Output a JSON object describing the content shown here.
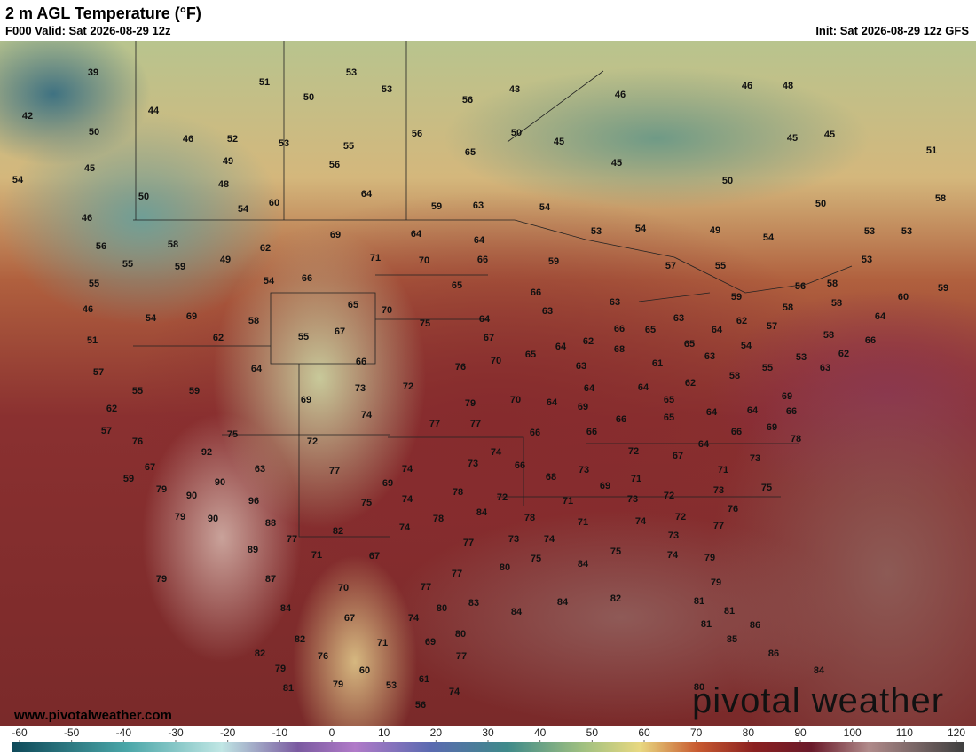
{
  "header": {
    "title": "2 m AGL Temperature (°F)",
    "valid": "F000 Valid: Sat 2026-08-29 12z",
    "init": "Init: Sat 2026-08-29 12z GFS"
  },
  "map": {
    "station_values": [
      39,
      51,
      53,
      53,
      50,
      43,
      46,
      46,
      48,
      42,
      44,
      50,
      46,
      52,
      53,
      55,
      56,
      56,
      50,
      45,
      65,
      45,
      49,
      56,
      45,
      45,
      45,
      51,
      50,
      54,
      50,
      48,
      64,
      60,
      59,
      63,
      54,
      50,
      58,
      54,
      46,
      69,
      64,
      64,
      53,
      54,
      49,
      54,
      53,
      53,
      56,
      58,
      62,
      71,
      70,
      66,
      59,
      57,
      55,
      53,
      55,
      49,
      59,
      54,
      66,
      65,
      66,
      56,
      58,
      60,
      59,
      55,
      65,
      70,
      63,
      63,
      59,
      46,
      54,
      69,
      58,
      75,
      64,
      63,
      58,
      58,
      64,
      51,
      62,
      55,
      67,
      67,
      62,
      66,
      65,
      64,
      62,
      57,
      58,
      66,
      57,
      64,
      66,
      76,
      70,
      65,
      64,
      63,
      68,
      61,
      65,
      63,
      54,
      55,
      53,
      63,
      62,
      55,
      59,
      73,
      72,
      70,
      64,
      64,
      64,
      62,
      58,
      69,
      62,
      69,
      79,
      74,
      69,
      65,
      65,
      64,
      64,
      66,
      57,
      77,
      77,
      66,
      66,
      66,
      66,
      69,
      78,
      76,
      75,
      72,
      92,
      74,
      72,
      67,
      64,
      67,
      63,
      77,
      74,
      73,
      66,
      73,
      71,
      73,
      59,
      90,
      69,
      68,
      69,
      71,
      72,
      73,
      75,
      79,
      90,
      96,
      78,
      72,
      71,
      73,
      76,
      79,
      90,
      75,
      74,
      78,
      84,
      78,
      71,
      74,
      72,
      88,
      74,
      82,
      77,
      77,
      73,
      74,
      73,
      77,
      89,
      71,
      67,
      75,
      75,
      84,
      74,
      79,
      80,
      77,
      87,
      79,
      70,
      77,
      79,
      80,
      83,
      84,
      84,
      84,
      82,
      81,
      81,
      67,
      74,
      81,
      86,
      82,
      71,
      69,
      80,
      85,
      82,
      76,
      77,
      86,
      79,
      60,
      61,
      84,
      81,
      79,
      53,
      74,
      80,
      56
    ]
  },
  "footer": {
    "website": "www.pivotalweather.com",
    "watermark": "pivotal weather"
  },
  "colorbar": {
    "ticks": [
      -60,
      -50,
      -40,
      -30,
      -20,
      -10,
      0,
      10,
      20,
      30,
      40,
      50,
      60,
      70,
      80,
      90,
      100,
      110,
      120
    ]
  }
}
